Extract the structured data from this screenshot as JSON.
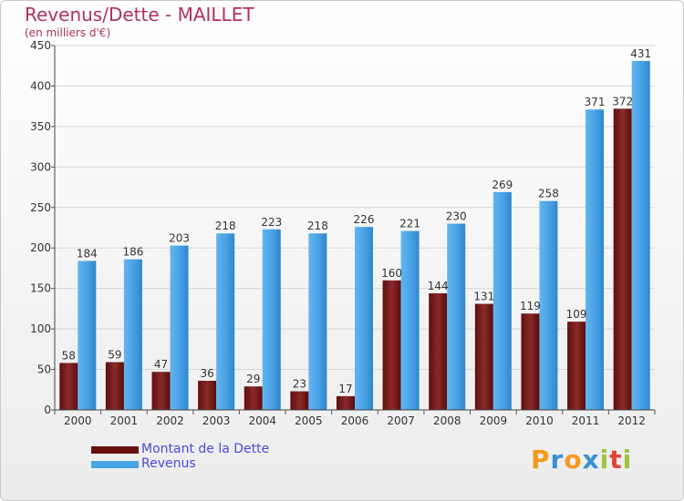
{
  "header": {
    "title": "Revenus/Dette - MAILLET",
    "subtitle": "(en milliers d'€)"
  },
  "logo": {
    "text": "Proxiti",
    "letters": [
      {
        "ch": "P",
        "color": "#f39a1e"
      },
      {
        "ch": "r",
        "color": "#3a8fd6"
      },
      {
        "ch": "o",
        "color": "#f39a1e"
      },
      {
        "ch": "x",
        "color": "#3a8fd6"
      },
      {
        "ch": "i",
        "color": "#9ec43a"
      },
      {
        "ch": "t",
        "color": "#e0453a"
      },
      {
        "ch": "i",
        "color": "#9ec43a"
      }
    ]
  },
  "colors": {
    "dette": "#7a1a1a",
    "revenus": "#4aa3e6",
    "grid": "#d7d7d7"
  },
  "chart_data": {
    "type": "bar",
    "categories": [
      "2000",
      "2001",
      "2002",
      "2003",
      "2004",
      "2005",
      "2006",
      "2007",
      "2008",
      "2009",
      "2010",
      "2011",
      "2012"
    ],
    "series": [
      {
        "name": "Montant de la Dette",
        "values": [
          58,
          59,
          47,
          36,
          29,
          23,
          17,
          160,
          144,
          131,
          119,
          109,
          372
        ]
      },
      {
        "name": "Revenus",
        "values": [
          184,
          186,
          203,
          218,
          223,
          218,
          226,
          221,
          230,
          269,
          258,
          371,
          431
        ]
      }
    ],
    "ylim": [
      0,
      450
    ],
    "yticks": [
      0,
      50,
      100,
      150,
      200,
      250,
      300,
      350,
      400,
      450
    ],
    "grid": true,
    "legend": "bottom-left"
  }
}
